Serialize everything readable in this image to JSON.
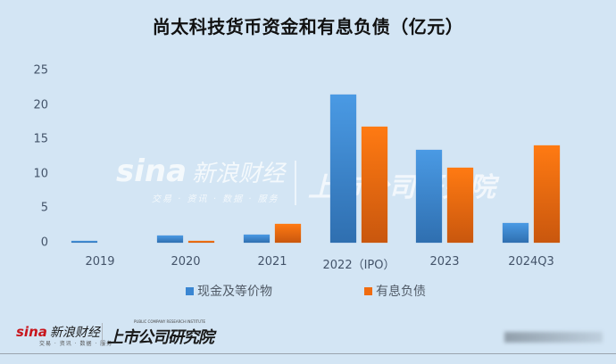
{
  "title": "尚太科技货币资金和有息负债（亿元）",
  "chart_data": {
    "type": "bar",
    "title": "尚太科技货币资金和有息负债（亿元）",
    "xlabel": "",
    "ylabel": "",
    "ylim": [
      0,
      25
    ],
    "yticks": [
      0,
      5,
      10,
      15,
      20,
      25
    ],
    "grid": false,
    "legend_position": "bottom",
    "categories": [
      "2019",
      "2020",
      "2021",
      "2022（IPO）",
      "2023",
      "2024Q3"
    ],
    "series": [
      {
        "name": "现金及等价物",
        "color": "#3a86d2",
        "values": [
          0.2,
          1.0,
          1.2,
          21.5,
          13.5,
          2.8
        ]
      },
      {
        "name": "有息负债",
        "color": "#f06c10",
        "values": [
          0.0,
          0.3,
          2.7,
          16.8,
          10.9,
          14.1
        ]
      }
    ]
  },
  "legend": {
    "items": [
      {
        "label": "现金及等价物",
        "color": "#3a86d2"
      },
      {
        "label": "有息负债",
        "color": "#f06c10"
      }
    ]
  },
  "watermark": {
    "brand": "sina",
    "brand_cn": "新浪财经",
    "brand_sub": "交易 · 资讯 · 数据 · 服务",
    "institute": "上市公司研究院"
  },
  "footer": {
    "brand": "sina",
    "brand_cn": "新浪财经",
    "brand_sub": "交易 · 资讯 · 数据 · 服务",
    "institute": "上市公司研究院",
    "institute_sub": "PUBLIC COMPANY RESEARCH INSTITUTE"
  }
}
